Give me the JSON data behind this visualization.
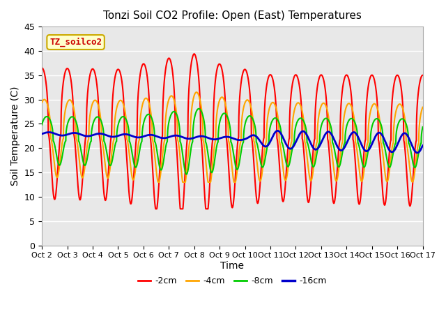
{
  "title": "Tonzi Soil CO2 Profile: Open (East) Temperatures",
  "ylabel": "Soil Temperature (C)",
  "xlabel": "Time",
  "ylim": [
    0,
    45
  ],
  "colors": {
    "-2cm": "#ff0000",
    "-4cm": "#ffa500",
    "-8cm": "#00cc00",
    "-16cm": "#0000cc"
  },
  "legend_label": "TZ_soilco2",
  "legend_box_color": "#ffffcc",
  "legend_box_edge": "#ccaa00",
  "legend_text_color": "#cc0000",
  "bg_color": "#e8e8e8",
  "xtick_labels": [
    "Oct 2",
    "Oct 3",
    "Oct 4",
    "Oct 5",
    "Oct 6",
    "Oct 7",
    "Oct 8",
    "Oct 9",
    "Oct 10",
    "Oct 11",
    "Oct 12",
    "Oct 13",
    "Oct 14",
    "Oct 15",
    "Oct 16",
    "Oct 17"
  ],
  "grid_color": "#ffffff",
  "line_width": 1.5
}
